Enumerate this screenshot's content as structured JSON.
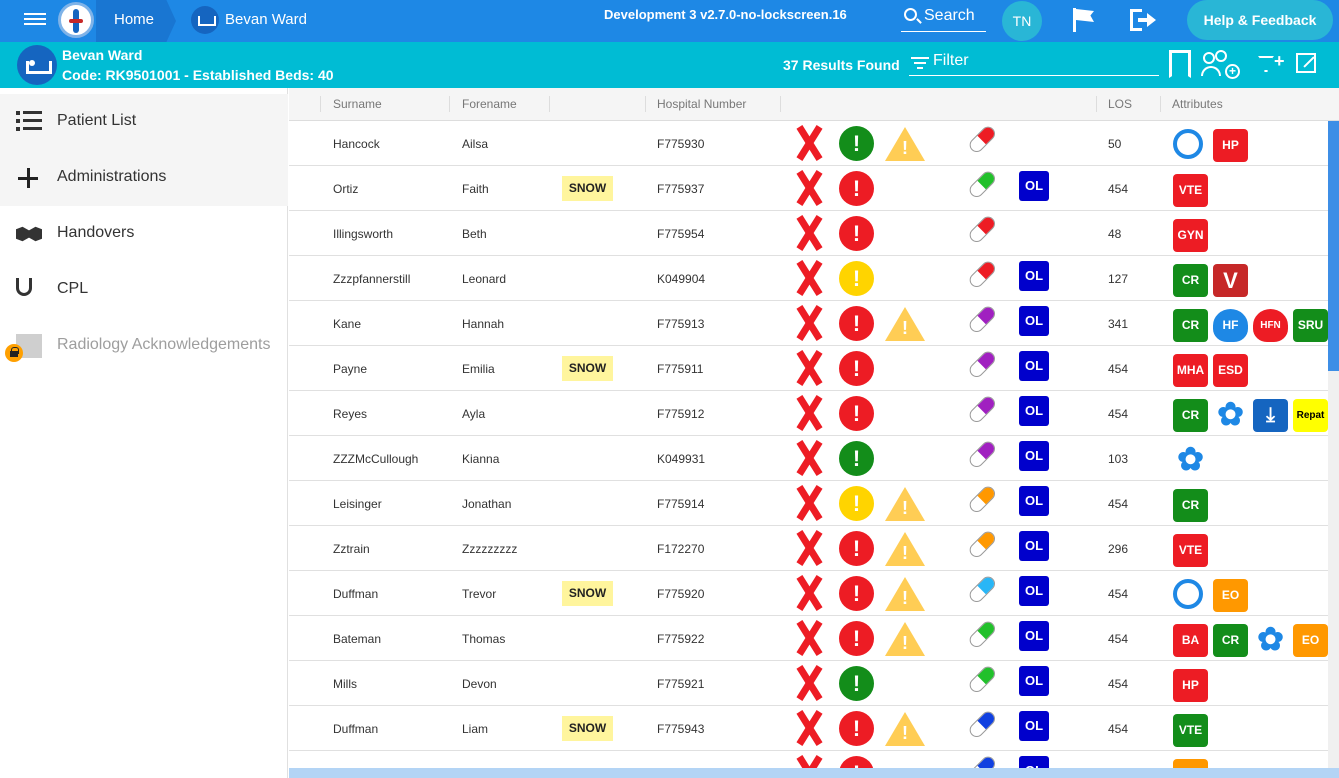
{
  "topbar": {
    "home_label": "Home",
    "ward_label": "Bevan Ward",
    "version": "Development 3 v2.7.0-no-lockscreen.16",
    "search_label": "Search",
    "user_initials": "TN",
    "help_label": "Help & Feedback"
  },
  "wardbar": {
    "name": "Bevan Ward",
    "code": "Code: RK9501001 - Established Beds: 40",
    "results": "37 Results Found",
    "filter_label": "Filter"
  },
  "sidebar": {
    "items": [
      {
        "label": "Patient List",
        "icon": "list-icon"
      },
      {
        "label": "Administrations",
        "icon": "plus-icon"
      },
      {
        "label": "Handovers",
        "icon": "handshake-icon"
      },
      {
        "label": "CPL",
        "icon": "stethoscope-icon"
      },
      {
        "label": "Radiology Acknowledgements",
        "icon": "radiology-icon",
        "locked": true
      }
    ]
  },
  "table": {
    "headers": {
      "surname": "Surname",
      "forename": "Forename",
      "hospital_number": "Hospital Number",
      "los": "LOS",
      "attributes": "Attributes"
    },
    "rows": [
      {
        "surname": "Hancock",
        "forename": "Ailsa",
        "snow": "",
        "hosp": "F775930",
        "status": "green",
        "warn": true,
        "pill": "#ed1c24",
        "ol": "",
        "los": "50",
        "attrs": [
          {
            "t": "ring",
            "v": ""
          },
          {
            "t": "red",
            "v": "HP"
          }
        ]
      },
      {
        "surname": "Ortiz",
        "forename": "Faith",
        "snow": "SNOW",
        "hosp": "F775937",
        "status": "red",
        "warn": false,
        "pill": "#22c02b",
        "ol": "OL",
        "los": "454",
        "attrs": [
          {
            "t": "red",
            "v": "VTE"
          }
        ]
      },
      {
        "surname": "Illingsworth",
        "forename": "Beth",
        "snow": "",
        "hosp": "F775954",
        "status": "red",
        "warn": false,
        "pill": "#ed1c24",
        "ol": "",
        "los": "48",
        "attrs": [
          {
            "t": "red",
            "v": "GYN"
          }
        ]
      },
      {
        "surname": "Zzzpfannerstill",
        "forename": "Leonard",
        "snow": "",
        "hosp": "K049904",
        "status": "yellow",
        "warn": false,
        "pill": "#ed1c24",
        "ol": "OL",
        "los": "127",
        "attrs": [
          {
            "t": "green",
            "v": "CR"
          },
          {
            "t": "butterfly",
            "v": "V"
          }
        ]
      },
      {
        "surname": "Kane",
        "forename": "Hannah",
        "snow": "",
        "hosp": "F775913",
        "status": "red",
        "warn": true,
        "pill": "#a020c0",
        "ol": "OL",
        "los": "341",
        "attrs": [
          {
            "t": "green",
            "v": "CR"
          },
          {
            "t": "heart",
            "v": "HF"
          },
          {
            "t": "heartred",
            "v": "HFN"
          },
          {
            "t": "green",
            "v": "SRU"
          }
        ]
      },
      {
        "surname": "Payne",
        "forename": "Emilia",
        "snow": "SNOW",
        "hosp": "F775911",
        "status": "red",
        "warn": false,
        "pill": "#a020c0",
        "ol": "OL",
        "los": "454",
        "attrs": [
          {
            "t": "red",
            "v": "MHA"
          },
          {
            "t": "red",
            "v": "ESD"
          }
        ]
      },
      {
        "surname": "Reyes",
        "forename": "Ayla",
        "snow": "",
        "hosp": "F775912",
        "status": "red",
        "warn": false,
        "pill": "#a020c0",
        "ol": "OL",
        "los": "454",
        "attrs": [
          {
            "t": "green",
            "v": "CR"
          },
          {
            "t": "flower",
            "v": "✿"
          },
          {
            "t": "fall",
            "v": "⤓"
          },
          {
            "t": "yellow",
            "v": "Repat"
          }
        ]
      },
      {
        "surname": "ZZZMcCullough",
        "forename": "Kianna",
        "snow": "",
        "hosp": "K049931",
        "status": "green",
        "warn": false,
        "pill": "#a020c0",
        "ol": "OL",
        "los": "103",
        "attrs": [
          {
            "t": "flower",
            "v": "✿"
          }
        ]
      },
      {
        "surname": "Leisinger",
        "forename": "Jonathan",
        "snow": "",
        "hosp": "F775914",
        "status": "yellow",
        "warn": true,
        "pill": "#ff9800",
        "ol": "OL",
        "los": "454",
        "attrs": [
          {
            "t": "green",
            "v": "CR"
          }
        ]
      },
      {
        "surname": "Zztrain",
        "forename": "Zzzzzzzzz",
        "snow": "",
        "hosp": "F172270",
        "status": "red",
        "warn": true,
        "pill": "#ff9800",
        "ol": "OL",
        "los": "296",
        "attrs": [
          {
            "t": "red",
            "v": "VTE"
          }
        ]
      },
      {
        "surname": "Duffman",
        "forename": "Trevor",
        "snow": "SNOW",
        "hosp": "F775920",
        "status": "red",
        "warn": true,
        "pill": "#29b6f6",
        "ol": "OL",
        "los": "454",
        "attrs": [
          {
            "t": "ring",
            "v": ""
          },
          {
            "t": "orange",
            "v": "EO"
          }
        ]
      },
      {
        "surname": "Bateman",
        "forename": "Thomas",
        "snow": "",
        "hosp": "F775922",
        "status": "red",
        "warn": true,
        "pill": "#22c02b",
        "ol": "OL",
        "los": "454",
        "attrs": [
          {
            "t": "red",
            "v": "BA"
          },
          {
            "t": "green",
            "v": "CR"
          },
          {
            "t": "flower",
            "v": "✿"
          },
          {
            "t": "orange",
            "v": "EO"
          }
        ]
      },
      {
        "surname": "Mills",
        "forename": "Devon",
        "snow": "",
        "hosp": "F775921",
        "status": "green",
        "warn": false,
        "pill": "#22c02b",
        "ol": "OL",
        "los": "454",
        "attrs": [
          {
            "t": "red",
            "v": "HP"
          }
        ]
      },
      {
        "surname": "Duffman",
        "forename": "Liam",
        "snow": "SNOW",
        "hosp": "F775943",
        "status": "red",
        "warn": true,
        "pill": "#1040e0",
        "ol": "OL",
        "los": "454",
        "attrs": [
          {
            "t": "green",
            "v": "VTE"
          }
        ]
      },
      {
        "surname": "",
        "forename": "",
        "snow": "",
        "hosp": "",
        "status": "red",
        "warn": false,
        "pill": "#1040e0",
        "ol": "OL",
        "los": "",
        "attrs": [
          {
            "t": "orange",
            "v": ""
          }
        ]
      }
    ]
  }
}
